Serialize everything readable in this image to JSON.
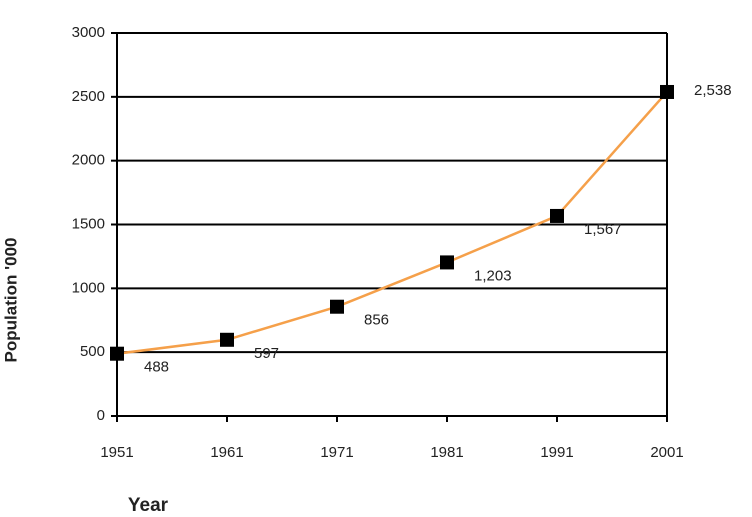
{
  "chart_data": {
    "type": "line",
    "x_label": "Year",
    "y_label": "Population '000",
    "x": [
      1951,
      1961,
      1971,
      1981,
      1991,
      2001
    ],
    "series": [
      {
        "color": "#f5a04a",
        "marker_color": "#000000",
        "values": [
          488,
          597,
          856,
          1203,
          1567,
          2538
        ],
        "value_labels": [
          "488",
          "597",
          "856",
          "1,203",
          "1,567",
          "2,538"
        ]
      }
    ],
    "xlim": [
      1951,
      2001
    ],
    "xticks": [
      1951,
      1961,
      1971,
      1981,
      1991,
      2001
    ],
    "ylim": [
      0,
      3000
    ],
    "yticks": [
      0,
      500,
      1000,
      1500,
      2000,
      2500,
      3000
    ],
    "grid": true
  }
}
